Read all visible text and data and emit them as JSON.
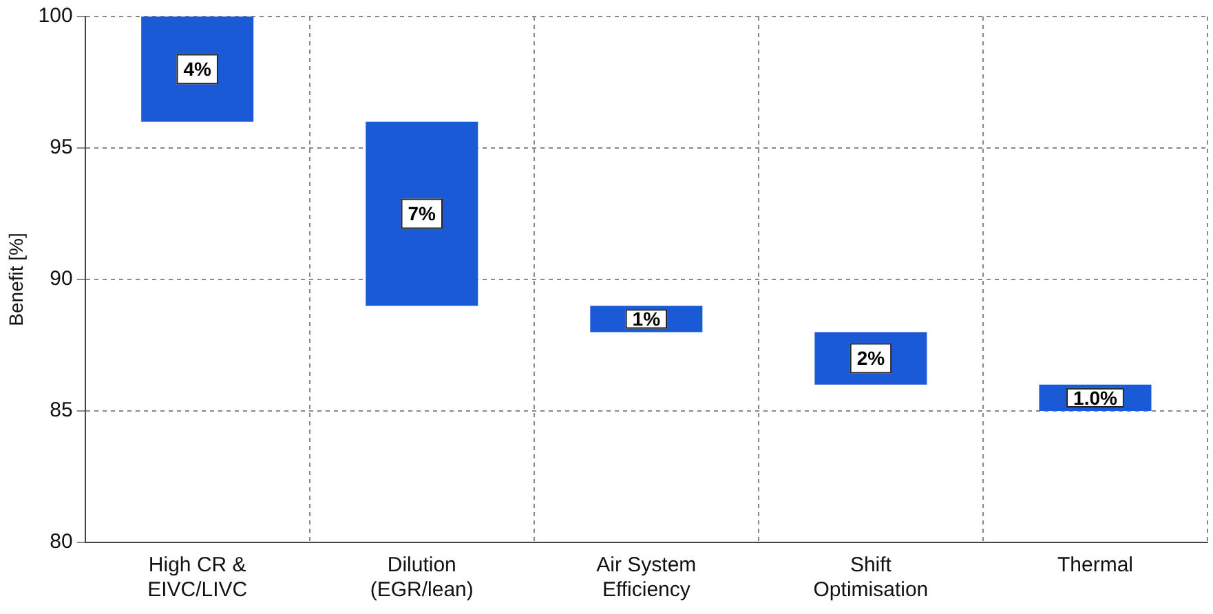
{
  "chart_data": {
    "type": "bar",
    "ylabel": "Benefit [%]",
    "categories": [
      "High CR &\nEIVC/LIVC",
      "Dilution\n(EGR/lean)",
      "Air System\nEfficiency",
      "Shift\nOptimisation",
      "Thermal"
    ],
    "base": [
      96,
      89,
      88,
      86,
      85
    ],
    "values": [
      4,
      7,
      1,
      2,
      1
    ],
    "value_labels": [
      "4%",
      "7%",
      "1%",
      "2%",
      "1.0%"
    ],
    "color": "#1a5ad6",
    "ylim": [
      80,
      100
    ],
    "yticks": [
      80,
      85,
      90,
      95,
      100
    ],
    "grid": true,
    "legend": false
  }
}
